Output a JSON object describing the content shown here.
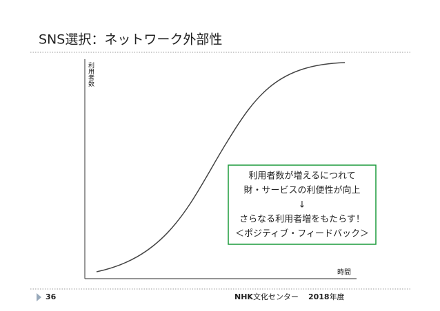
{
  "header": {
    "title": "SNS選択：ネットワーク外部性"
  },
  "diagram": {
    "y_axis_label": "利用者数",
    "x_axis_label": "時間",
    "callout": {
      "lines": [
        "利用者数が増えるにつれて",
        "財・サービスの利便性が向上",
        "↓",
        "さらなる利用者増をもたらす！",
        "＜ポジティブ・フィードバック＞"
      ]
    }
  },
  "footer": {
    "page": "36",
    "org": [
      "NHK",
      "文化センター",
      "2018",
      "年度"
    ]
  }
}
